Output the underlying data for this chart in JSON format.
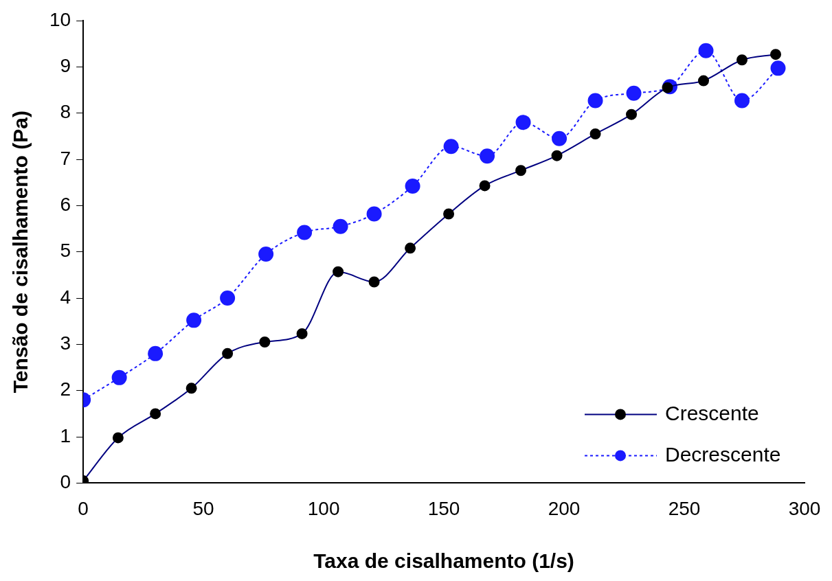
{
  "chart_data": {
    "type": "line",
    "xlabel": "Taxa de cisalhamento (1/s)",
    "ylabel": "Tensão de cisalhamento (Pa)",
    "xlim": [
      0,
      300
    ],
    "xticks": [
      0,
      50,
      100,
      150,
      200,
      250,
      300
    ],
    "ylim": [
      0,
      10
    ],
    "yticks": [
      0,
      1,
      2,
      3,
      4,
      5,
      6,
      7,
      8,
      9,
      10
    ],
    "grid": false,
    "legend": "bottom right",
    "marker": "circle",
    "series": [
      {
        "name": "Crescente",
        "color": "#000080",
        "line_style": "solid",
        "colors": [
          "#000000",
          "#000000",
          "#000000",
          "#000000",
          "#000000",
          "#000000",
          "#000000",
          "#000000",
          "#000000",
          "#000000",
          "#000000",
          "#000000",
          "#000000",
          "#000000",
          "#000000",
          "#000000",
          "#000000",
          "#000000",
          "#000000",
          "#000000"
        ],
        "x": [
          0,
          14.5,
          30,
          45,
          60,
          75.5,
          91,
          106,
          121,
          136,
          152,
          167,
          182,
          197,
          213,
          228,
          243,
          258,
          274,
          288
        ],
        "values": [
          0.05,
          0.98,
          1.5,
          2.05,
          2.8,
          3.05,
          3.23,
          4.57,
          4.35,
          5.08,
          5.82,
          6.43,
          6.76,
          7.08,
          7.55,
          7.97,
          8.55,
          8.7,
          9.15,
          9.27
        ]
      },
      {
        "name": "Decrescente",
        "color": "#1a1aff",
        "line_style": "dotted",
        "x": [
          0,
          15,
          30,
          46,
          60,
          76,
          92,
          107,
          121,
          137,
          153,
          168,
          183,
          198,
          213,
          229,
          244,
          259,
          274,
          289
        ],
        "values": [
          1.8,
          2.28,
          2.8,
          3.52,
          4.0,
          4.95,
          5.42,
          5.55,
          5.82,
          6.42,
          7.28,
          7.07,
          7.8,
          7.45,
          8.27,
          8.43,
          8.57,
          9.35,
          8.27,
          8.97
        ]
      }
    ]
  }
}
